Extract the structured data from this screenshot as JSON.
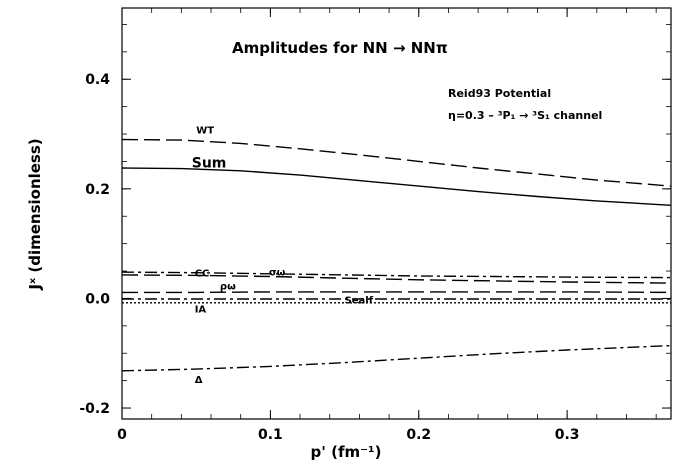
{
  "chart_data": {
    "type": "line",
    "title": "Amplitudes for NN → NNπ",
    "subtitle_lines": [
      "Reid93 Potential",
      "η=0.3 –  ³P₁ → ³S₁ channel"
    ],
    "xlabel": "p' (fm⁻¹)",
    "ylabel": "Jˣ (dimensionless)",
    "xlim": [
      0,
      0.37
    ],
    "ylim": [
      -0.22,
      0.53
    ],
    "x_ticks": [
      "0",
      "0.1",
      "0.2",
      "0.3"
    ],
    "x_tick_values": [
      0,
      0.1,
      0.2,
      0.3
    ],
    "y_ticks": [
      "-0.2",
      "0.0",
      "0.2",
      "0.4"
    ],
    "y_tick_values": [
      -0.2,
      0.0,
      0.2,
      0.4
    ],
    "grid": false,
    "series": [
      {
        "name": "WT",
        "style": "long-dash",
        "x": [
          0,
          0.04,
          0.08,
          0.12,
          0.16,
          0.2,
          0.24,
          0.28,
          0.32,
          0.37
        ],
        "y": [
          0.29,
          0.289,
          0.283,
          0.273,
          0.262,
          0.25,
          0.238,
          0.227,
          0.216,
          0.205
        ]
      },
      {
        "name": "Sum",
        "style": "solid",
        "x": [
          0,
          0.04,
          0.08,
          0.12,
          0.16,
          0.2,
          0.24,
          0.28,
          0.32,
          0.37
        ],
        "y": [
          0.238,
          0.237,
          0.233,
          0.225,
          0.215,
          0.205,
          0.195,
          0.186,
          0.178,
          0.17
        ]
      },
      {
        "name": "CC",
        "style": "dash-dot",
        "x": [
          0,
          0.05,
          0.1,
          0.15,
          0.2,
          0.25,
          0.3,
          0.37
        ],
        "y": [
          0.048,
          0.047,
          0.045,
          0.043,
          0.041,
          0.04,
          0.039,
          0.038
        ]
      },
      {
        "name": "σω",
        "style": "long-dash",
        "x": [
          0,
          0.05,
          0.1,
          0.15,
          0.2,
          0.25,
          0.3,
          0.37
        ],
        "y": [
          0.043,
          0.042,
          0.04,
          0.037,
          0.034,
          0.032,
          0.03,
          0.028
        ]
      },
      {
        "name": "ρω",
        "style": "long-dash",
        "x": [
          0,
          0.05,
          0.1,
          0.15,
          0.2,
          0.25,
          0.3,
          0.37
        ],
        "y": [
          0.011,
          0.011,
          0.012,
          0.012,
          0.012,
          0.012,
          0.012,
          0.011
        ]
      },
      {
        "name": "Sealf",
        "style": "dash-dot",
        "x": [
          0,
          0.05,
          0.1,
          0.15,
          0.2,
          0.25,
          0.3,
          0.37
        ],
        "y": [
          -0.001,
          -0.001,
          -0.001,
          -0.001,
          -0.001,
          -0.001,
          -0.001,
          -0.001
        ]
      },
      {
        "name": "IA",
        "style": "dotted",
        "x": [
          0,
          0.05,
          0.1,
          0.15,
          0.2,
          0.25,
          0.3,
          0.37
        ],
        "y": [
          -0.008,
          -0.008,
          -0.008,
          -0.008,
          -0.008,
          -0.008,
          -0.008,
          -0.008
        ]
      },
      {
        "name": "Δ",
        "style": "dash-dot",
        "x": [
          0,
          0.05,
          0.1,
          0.15,
          0.2,
          0.25,
          0.3,
          0.37
        ],
        "y": [
          -0.132,
          -0.129,
          -0.124,
          -0.117,
          -0.109,
          -0.101,
          -0.094,
          -0.086
        ]
      }
    ],
    "annotations": [
      {
        "text": "WT",
        "x": 0.05,
        "y": 0.301
      },
      {
        "text": "Sum",
        "x": 0.047,
        "y": 0.239
      },
      {
        "text": "CC",
        "x": 0.049,
        "y": 0.04
      },
      {
        "text": "σω",
        "x": 0.099,
        "y": 0.042
      },
      {
        "text": "ρω",
        "x": 0.066,
        "y": 0.016
      },
      {
        "text": "Sealf",
        "x": 0.15,
        "y": -0.009
      },
      {
        "text": "IA",
        "x": 0.049,
        "y": -0.026
      },
      {
        "text": "Δ",
        "x": 0.049,
        "y": -0.154
      }
    ]
  }
}
